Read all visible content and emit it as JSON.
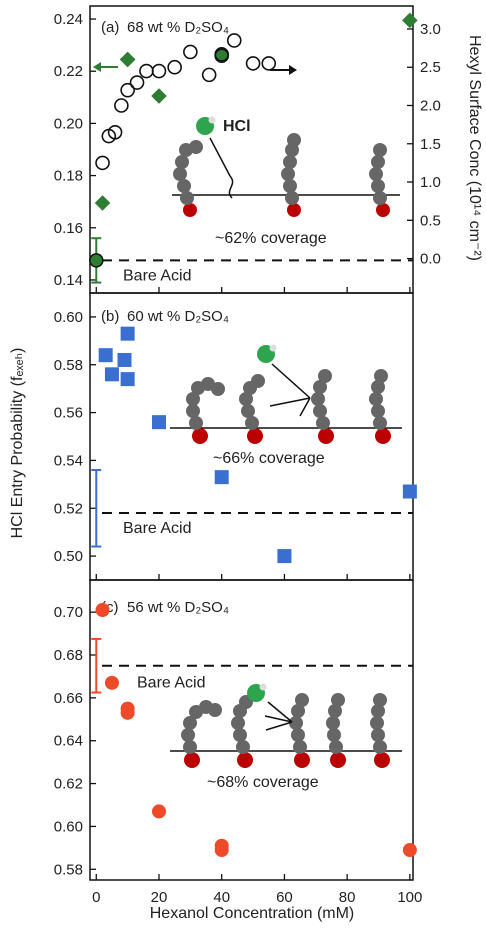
{
  "chart_data": [
    {
      "type": "scatter",
      "panel": "(a)",
      "label": "68 wt % D₂SO₄",
      "ylim": [
        0.135,
        0.245
      ],
      "yticks": [
        "0.14",
        "0.16",
        "0.18",
        "0.20",
        "0.22",
        "0.24"
      ],
      "y2label": "Hexyl Surface Conc (10¹⁴ cm⁻²)",
      "y2ticks": [
        "0.0",
        "0.5",
        "1.0",
        "1.5",
        "2.0",
        "2.5",
        "3.0"
      ],
      "y2lim": [
        -0.45,
        3.3
      ],
      "bare_acid_label": "Bare Acid",
      "bare_acid_y": 0.1475,
      "bare_acid_point": {
        "x": 0,
        "y": 0.1475,
        "err": 0.0085
      },
      "entry_probability": {
        "color": "#2e7d32",
        "x": [
          0,
          2,
          10,
          10,
          20,
          40,
          100
        ],
        "y": [
          0.1475,
          0.1695,
          0.2245,
          0.2245,
          0.2105,
          0.2265,
          0.2395
        ]
      },
      "surface_conc": {
        "x": [
          2,
          4,
          6,
          8,
          10,
          13,
          16,
          20,
          25,
          30,
          36,
          40,
          44,
          50,
          55
        ],
        "y": [
          1.25,
          1.6,
          1.65,
          2.0,
          2.2,
          2.3,
          2.45,
          2.45,
          2.5,
          2.7,
          2.4,
          2.65,
          2.85,
          2.55,
          2.55
        ]
      },
      "hcl_label": "HCl",
      "coverage_label": "~62% coverage",
      "coverage_color": "#2e8b2e"
    },
    {
      "type": "scatter",
      "panel": "(b)",
      "label": "60 wt % D₂SO₄",
      "ylim": [
        0.49,
        0.61
      ],
      "yticks": [
        "0.50",
        "0.52",
        "0.54",
        "0.56",
        "0.58",
        "0.60"
      ],
      "bare_acid_label": "Bare Acid",
      "bare_acid_y": 0.518,
      "bare_acid_point": {
        "x": 0,
        "y": 0.52,
        "err": 0.016
      },
      "entry_probability": {
        "color": "#3a6ecf",
        "x": [
          3,
          5,
          9,
          10,
          10,
          20,
          40,
          60,
          100
        ],
        "y": [
          0.584,
          0.576,
          0.582,
          0.574,
          0.593,
          0.556,
          0.533,
          0.5,
          0.527
        ]
      },
      "coverage_label": "~66% coverage",
      "coverage_color": "#3a6ecf"
    },
    {
      "type": "scatter",
      "panel": "(c)",
      "label": "56 wt % D₂SO₄",
      "ylim": [
        0.575,
        0.715
      ],
      "yticks": [
        "0.58",
        "0.60",
        "0.62",
        "0.64",
        "0.66",
        "0.68",
        "0.70"
      ],
      "xticks": [
        "0",
        "20",
        "40",
        "60",
        "80",
        "100"
      ],
      "xlim": [
        -2,
        101
      ],
      "xlabel": "Hexanol Concentration (mM)",
      "bare_acid_label": "Bare Acid",
      "bare_acid_y": 0.675,
      "bare_acid_point": {
        "x": 0,
        "y": 0.675,
        "err": 0.0125
      },
      "entry_probability": {
        "color": "#ee4a2a",
        "x": [
          2,
          5,
          10,
          10,
          20,
          40,
          40,
          100
        ],
        "y": [
          0.701,
          0.667,
          0.655,
          0.653,
          0.607,
          0.591,
          0.589,
          0.589
        ]
      },
      "coverage_label": "~68% coverage",
      "coverage_color": "#ee4a2a"
    }
  ],
  "ylabel": "HCl Entry Probability (fₑₓₑₕ)"
}
